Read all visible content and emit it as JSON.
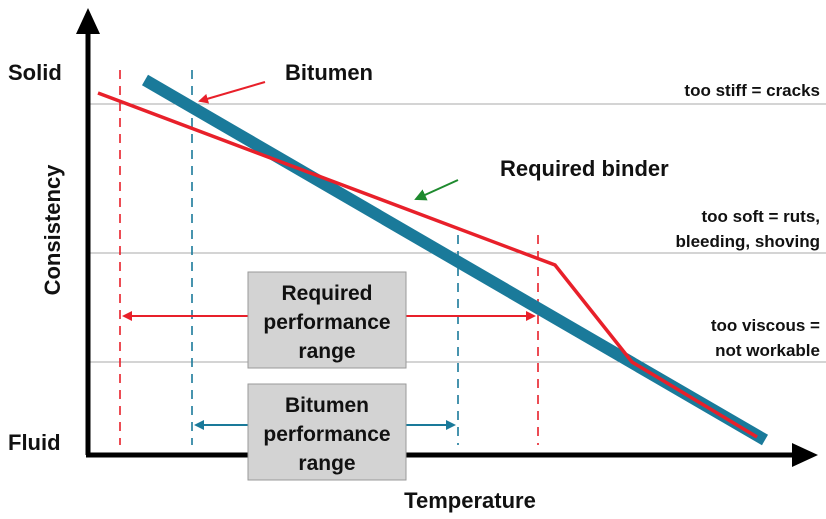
{
  "axis": {
    "y_top": "Solid",
    "y_bottom": "Fluid",
    "y_title": "Consistency",
    "x_title": "Temperature"
  },
  "callouts": {
    "bitumen": "Bitumen",
    "required_binder": "Required binder"
  },
  "levels": [
    {
      "lines": [
        "too stiff = cracks"
      ]
    },
    {
      "lines": [
        "too soft = ruts,",
        "bleeding, shoving"
      ]
    },
    {
      "lines": [
        "too viscous =",
        "not workable"
      ]
    }
  ],
  "boxes": [
    {
      "lines": [
        "Required",
        "performance",
        "range"
      ]
    },
    {
      "lines": [
        "Bitumen",
        "performance",
        "range"
      ]
    }
  ]
}
